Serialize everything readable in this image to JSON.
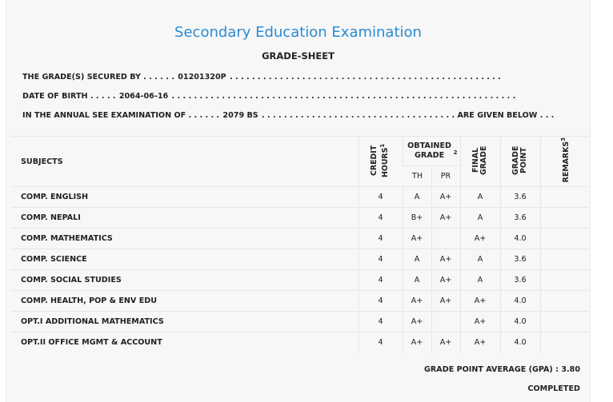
{
  "header": {
    "title": "Secondary Education Examination",
    "subtitle": "GRADE-SHEET"
  },
  "info": {
    "secured_label": "THE GRADE(S) SECURED BY . . . . . .",
    "secured_value": "01201320P",
    "secured_dots": ". . . . . . . . . . . . . . . . . . . . . . . . . . . . . . . . . . . . . . . . . . . . . . . . .",
    "dob_label": "DATE OF BIRTH . . . . .",
    "dob_value": "2064-06-16",
    "dob_dots": ". . . . . . . . . . . . . . . . . . . . . . . . . . . . . . . . . . . . . . . . . . . . . . . . . . . . . . . . . . . . . .",
    "exam_label": "IN THE ANNUAL SEE EXAMINATION OF . . . . . .",
    "exam_value": "2079 BS",
    "exam_dots": ". . . . . . . . . . . . . . . . . . . . . . . . . . . . . . . . . . .",
    "exam_suffix": "ARE GIVEN BELOW . . ."
  },
  "table": {
    "col_subjects": "SUBJECTS",
    "col_credit": "CREDIT HOURS",
    "col_credit_sup": "1",
    "col_obtained": "OBTAINED GRADE",
    "col_obtained_sup": "2",
    "col_th": "TH",
    "col_pr": "PR",
    "col_final": "FINAL GRADE",
    "col_point": "GRADE POINT",
    "col_remarks": "REMARKS",
    "col_remarks_sup": "3",
    "rows": [
      {
        "subject": "COMP. ENGLISH",
        "credit": "4",
        "th": "A",
        "pr": "A+",
        "final": "A",
        "point": "3.6",
        "remarks": ""
      },
      {
        "subject": "COMP. NEPALI",
        "credit": "4",
        "th": "B+",
        "pr": "A+",
        "final": "A",
        "point": "3.6",
        "remarks": ""
      },
      {
        "subject": "COMP. MATHEMATICS",
        "credit": "4",
        "th": "A+",
        "pr": "",
        "final": "A+",
        "point": "4.0",
        "remarks": ""
      },
      {
        "subject": "COMP. SCIENCE",
        "credit": "4",
        "th": "A",
        "pr": "A+",
        "final": "A",
        "point": "3.6",
        "remarks": ""
      },
      {
        "subject": "COMP. SOCIAL STUDIES",
        "credit": "4",
        "th": "A",
        "pr": "A+",
        "final": "A",
        "point": "3.6",
        "remarks": ""
      },
      {
        "subject": "COMP. HEALTH, POP & ENV EDU",
        "credit": "4",
        "th": "A+",
        "pr": "A+",
        "final": "A+",
        "point": "4.0",
        "remarks": ""
      },
      {
        "subject": "OPT.I ADDITIONAL MATHEMATICS",
        "credit": "4",
        "th": "A+",
        "pr": "",
        "final": "A+",
        "point": "4.0",
        "remarks": ""
      },
      {
        "subject": "OPT.II OFFICE MGMT & ACCOUNT",
        "credit": "4",
        "th": "A+",
        "pr": "A+",
        "final": "A+",
        "point": "4.0",
        "remarks": ""
      }
    ]
  },
  "footer": {
    "gpa": "GRADE POINT AVERAGE (GPA) : 3.80",
    "status": "COMPLETED"
  }
}
